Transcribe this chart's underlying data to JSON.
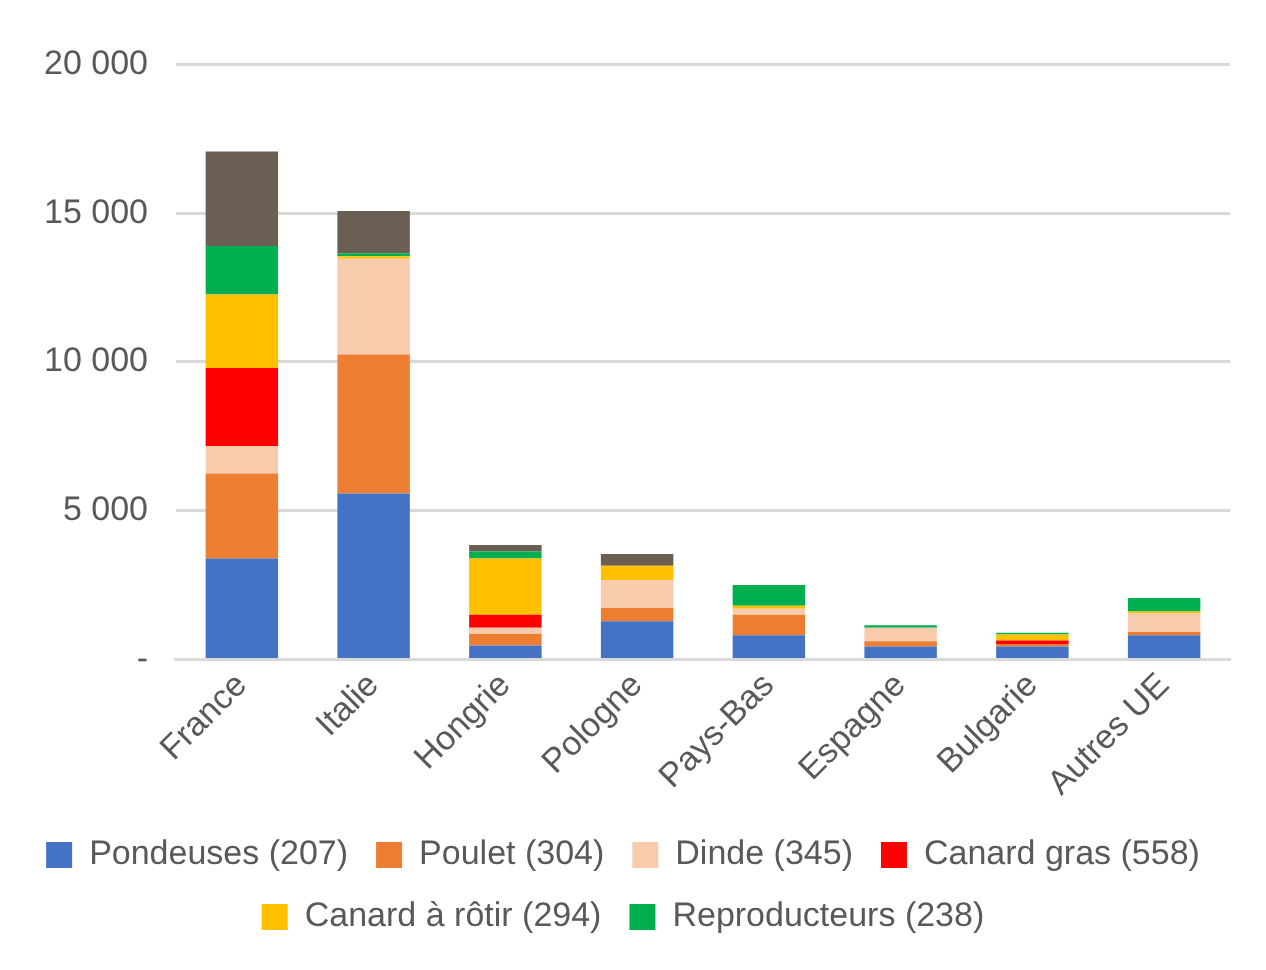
{
  "chart_data": {
    "type": "bar",
    "stacked": true,
    "categories": [
      "France",
      "Italie",
      "Hongrie",
      "Pologne",
      "Pays-Bas",
      "Espagne",
      "Bulgarie",
      "Autres UE"
    ],
    "series": [
      {
        "name": "Pondeuses (207)",
        "color": "#4472c4",
        "values": [
          3400,
          5580,
          470,
          1290,
          820,
          440,
          440,
          820
        ]
      },
      {
        "name": "Poulet (304)",
        "color": "#ed7d31",
        "values": [
          2850,
          4670,
          400,
          440,
          690,
          180,
          80,
          110
        ]
      },
      {
        "name": "Dinde (345)",
        "color": "#f8cbad",
        "values": [
          930,
          3220,
          200,
          940,
          200,
          450,
          0,
          620
        ]
      },
      {
        "name": "Canard gras (558)",
        "color": "#ff0000",
        "values": [
          2620,
          0,
          440,
          0,
          0,
          0,
          120,
          0
        ]
      },
      {
        "name": "Canard à rôtir (294)",
        "color": "#ffc000",
        "values": [
          2470,
          80,
          1890,
          480,
          100,
          0,
          200,
          70
        ]
      },
      {
        "name": "Reproducteurs (238)",
        "color": "#00b050",
        "values": [
          1630,
          100,
          230,
          0,
          700,
          80,
          60,
          450
        ]
      },
      {
        "color": "#6b5e53",
        "values": [
          3170,
          1420,
          220,
          400,
          0,
          0,
          0,
          0
        ]
      }
    ],
    "ylim": [
      0,
      20000
    ],
    "yticks": [
      {
        "value": 0,
        "label": "-"
      },
      {
        "value": 5000,
        "label": "5 000"
      },
      {
        "value": 10000,
        "label": "10 000"
      },
      {
        "value": 15000,
        "label": "15 000"
      },
      {
        "value": 20000,
        "label": "20 000"
      }
    ],
    "grid": "y",
    "legend": "bottom"
  }
}
